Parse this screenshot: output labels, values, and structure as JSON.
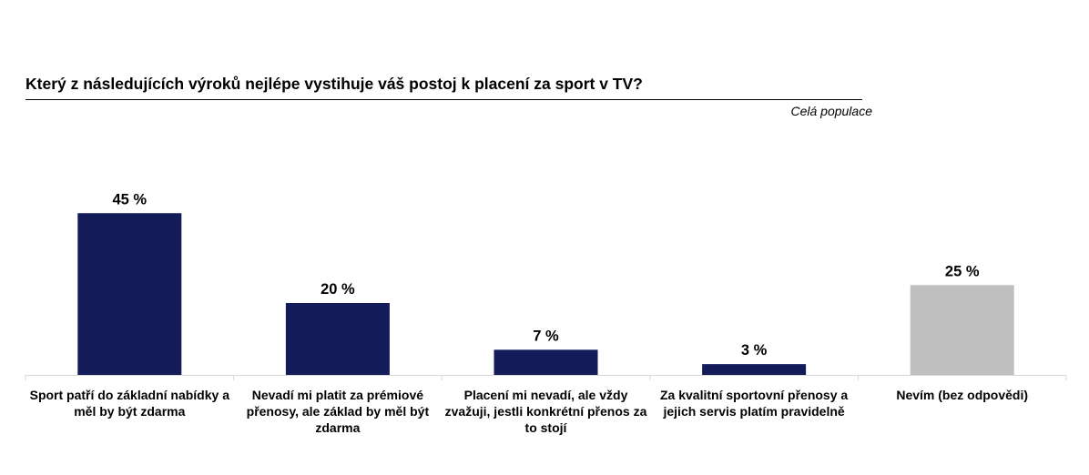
{
  "title": "Který z následujících výroků nejlépe vystihuje váš postoj k placení za sport v TV?",
  "subtitle": "Celá populace",
  "chart_data": {
    "type": "bar",
    "title": "Který z následujících výroků nejlépe vystihuje váš postoj k placení za sport v TV?",
    "subtitle": "Celá populace",
    "categories": [
      "Sport patří do základní nabídky a měl by být zdarma",
      "Nevadí mi platit za prémiové přenosy, ale základ by měl být zdarma",
      "Placení mi nevadí, ale vždy zvažuji, jestli konkrétní přenos za to stojí",
      "Za kvalitní sportovní přenosy a jejich servis platím pravidelně",
      "Nevím (bez odpovědi)"
    ],
    "values": [
      45,
      20,
      7,
      3,
      25
    ],
    "value_labels": [
      "45 %",
      "20 %",
      "7 %",
      "3 %",
      "25 %"
    ],
    "bar_colors": [
      "#131B58",
      "#131B58",
      "#131B58",
      "#131B58",
      "#BFBFBF"
    ],
    "xlabel": "",
    "ylabel": "",
    "ylim": [
      0,
      50
    ],
    "grid": false,
    "legend": "none"
  }
}
